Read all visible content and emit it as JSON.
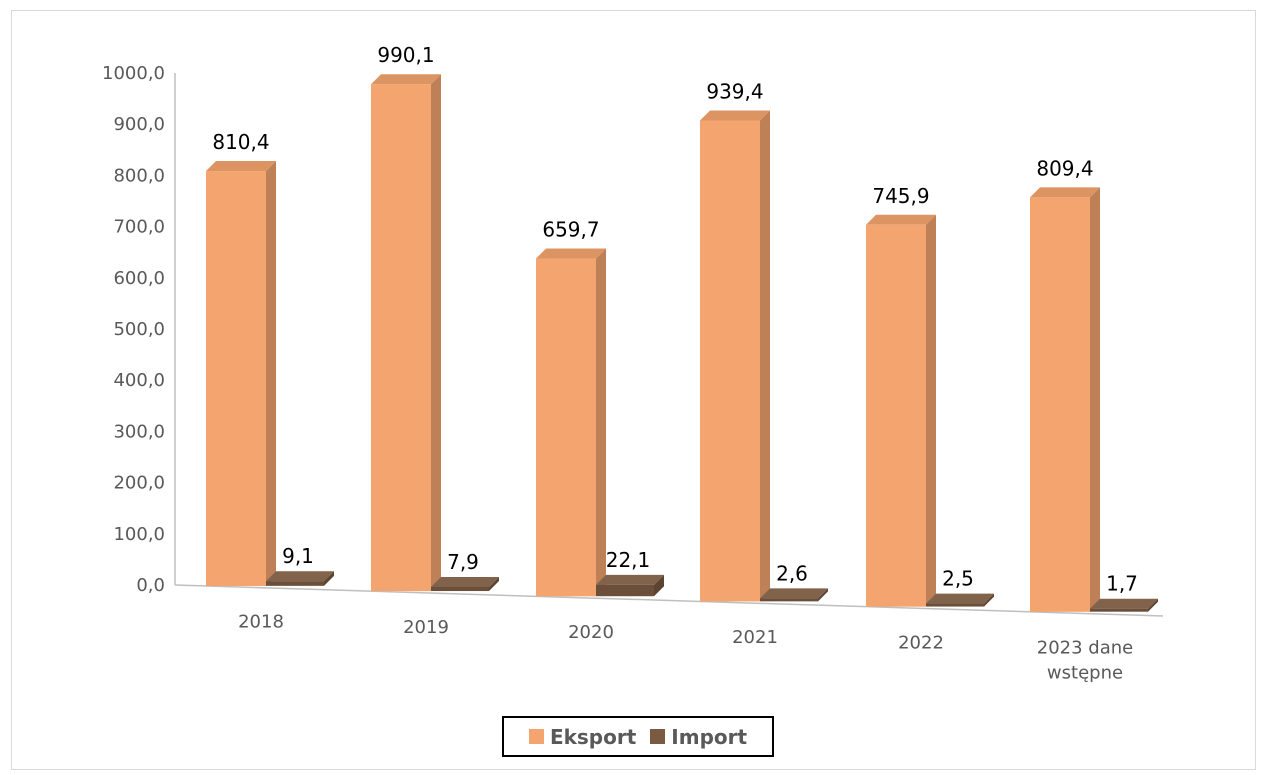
{
  "chart_data": {
    "type": "bar",
    "categories": [
      "2018",
      "2019",
      "2020",
      "2021",
      "2022",
      "2023 dane wstępne"
    ],
    "category_lines": [
      [
        "2018"
      ],
      [
        "2019"
      ],
      [
        "2020"
      ],
      [
        "2021"
      ],
      [
        "2022"
      ],
      [
        "2023 dane",
        "wstępne"
      ]
    ],
    "series": [
      {
        "name": "Eksport",
        "values": [
          810.4,
          990.1,
          659.7,
          939.4,
          745.9,
          809.4
        ],
        "labels": [
          "810,4",
          "990,1",
          "659,7",
          "939,4",
          "745,9",
          "809,4"
        ],
        "color": "#f4a46e"
      },
      {
        "name": "Import",
        "values": [
          9.1,
          7.9,
          22.1,
          2.6,
          2.5,
          1.7
        ],
        "labels": [
          "9,1",
          "7,9",
          "22,1",
          "2,6",
          "2,5",
          "1,7"
        ],
        "color": "#7a5a42"
      }
    ],
    "ylim": [
      0,
      1000
    ],
    "yticks": [
      0,
      100,
      200,
      300,
      400,
      500,
      600,
      700,
      800,
      900,
      1000
    ],
    "ytick_labels": [
      "0,0",
      "100,0",
      "200,0",
      "300,0",
      "400,0",
      "500,0",
      "600,0",
      "700,0",
      "800,0",
      "900,0",
      "1000,0"
    ],
    "style": "3d-perspective",
    "grid": false,
    "legend_position": "bottom"
  }
}
